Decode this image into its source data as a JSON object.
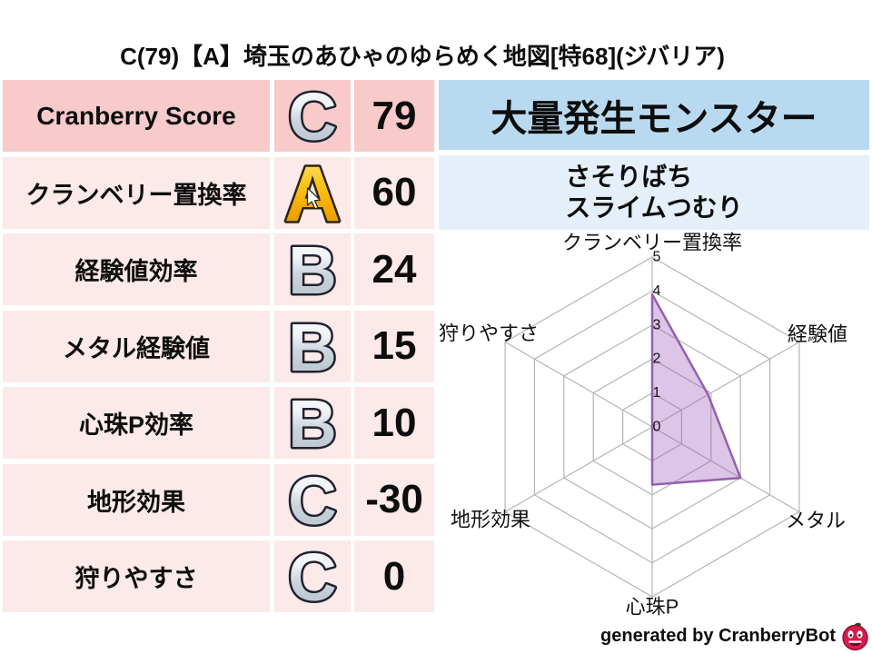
{
  "title": "C(79)【A】埼玉のあひゃのゆらめく地図[特68](ジバリア)",
  "table": {
    "rows": [
      {
        "label": "Cranberry Score",
        "grade": "C",
        "value": "79"
      },
      {
        "label": "クランベリー置換率",
        "grade": "A",
        "value": "60"
      },
      {
        "label": "経験値効率",
        "grade": "B",
        "value": "24"
      },
      {
        "label": "メタル経験値",
        "grade": "B",
        "value": "15"
      },
      {
        "label": "心珠P効率",
        "grade": "B",
        "value": "10"
      },
      {
        "label": "地形効果",
        "grade": "C",
        "value": "-30"
      },
      {
        "label": "狩りやすさ",
        "grade": "C",
        "value": "0"
      }
    ]
  },
  "monsters": {
    "header": "大量発生モンスター",
    "names": [
      "さそりばち",
      "スライムつむり"
    ]
  },
  "credit": {
    "text": "generated by CranberryBot",
    "icon": "cranberry-mascot-icon"
  },
  "chart_data": {
    "type": "radar",
    "categories": [
      "クランベリー置換率",
      "経験値",
      "メタル",
      "心珠P",
      "地形効果",
      "狩りやすさ"
    ],
    "values": [
      3.9,
      1.9,
      3.0,
      1.7,
      0,
      0
    ],
    "ticks": [
      0,
      1,
      2,
      3,
      4,
      5
    ],
    "range": [
      0,
      5
    ],
    "grid": true,
    "fill_color": "rgba(155,89,182,0.35)",
    "line_color": "#9560ad",
    "grid_color": "#b5b5b5"
  },
  "colors": {
    "row_highlight_bg": "#f8caca",
    "row_bg": "#fce9e9",
    "monster_header_bg": "#b9d9f1",
    "monster_list_bg": "#e5effa",
    "grade_gold": "#fcc41d",
    "grade_silver": "#cdd5dd",
    "radar_purple": "#9560ad"
  }
}
